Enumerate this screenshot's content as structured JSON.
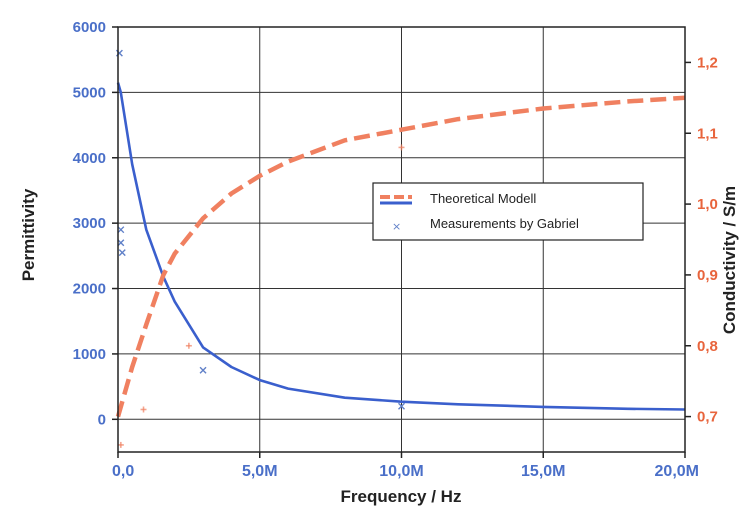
{
  "chart_data": {
    "type": "line",
    "xlabel": "Frequency / Hz",
    "ylabel_left": "Permittivity",
    "ylabel_right": "Conductivity / S/m",
    "xlim": [
      0,
      20000000
    ],
    "ylim_left": [
      -500,
      6000
    ],
    "ylim_right": [
      0.65,
      1.25
    ],
    "x_ticks": [
      0,
      5000000,
      10000000,
      15000000,
      20000000
    ],
    "x_tick_labels": [
      "0,0",
      "5,0M",
      "10,0M",
      "15,0M",
      "20,0M"
    ],
    "y_left_ticks": [
      0,
      1000,
      2000,
      3000,
      4000,
      5000,
      6000
    ],
    "y_left_tick_labels": [
      "0",
      "1000",
      "2000",
      "3000",
      "4000",
      "5000",
      "6000"
    ],
    "y_right_ticks": [
      0.7,
      0.8,
      0.9,
      1.0,
      1.1,
      1.2
    ],
    "y_right_tick_labels": [
      "0,7",
      "0,8",
      "0,9",
      "1,0",
      "1,1",
      "1,2"
    ],
    "grid": true,
    "legend_position": "center-right",
    "series": [
      {
        "name": "Theoretical Modell",
        "axis": "left",
        "style": "solid",
        "color": "#3a5fcd",
        "x": [
          0,
          100000,
          500000,
          1000000,
          1600000,
          2000000,
          3000000,
          4000000,
          5000000,
          6000000,
          8000000,
          10000000,
          12000000,
          15000000,
          18000000,
          20000000
        ],
        "y": [
          5150,
          5000,
          3900,
          2900,
          2180,
          1800,
          1100,
          800,
          600,
          470,
          330,
          270,
          230,
          190,
          160,
          150
        ]
      },
      {
        "name": "",
        "axis": "right",
        "style": "dashed",
        "color": "#f08060",
        "x": [
          0,
          500000,
          1000000,
          1600000,
          2000000,
          3000000,
          4000000,
          5000000,
          6000000,
          8000000,
          10000000,
          12000000,
          15000000,
          18000000,
          20000000
        ],
        "y": [
          0.7,
          0.77,
          0.83,
          0.9,
          0.93,
          0.98,
          1.015,
          1.04,
          1.06,
          1.09,
          1.105,
          1.12,
          1.135,
          1.145,
          1.15
        ]
      },
      {
        "name": "Measurements by Gabriel",
        "axis": "left",
        "style": "markers",
        "color": "#6080c8",
        "x": [
          50000,
          100000,
          100000,
          150000,
          3000000,
          10000000
        ],
        "y": [
          5600,
          2900,
          2700,
          2550,
          750,
          200
        ]
      }
    ],
    "extra_markers_right": {
      "color": "#f08060",
      "x": [
        100000,
        900000,
        2500000,
        10000000
      ],
      "y": [
        0.66,
        0.71,
        0.8,
        1.08
      ]
    }
  }
}
